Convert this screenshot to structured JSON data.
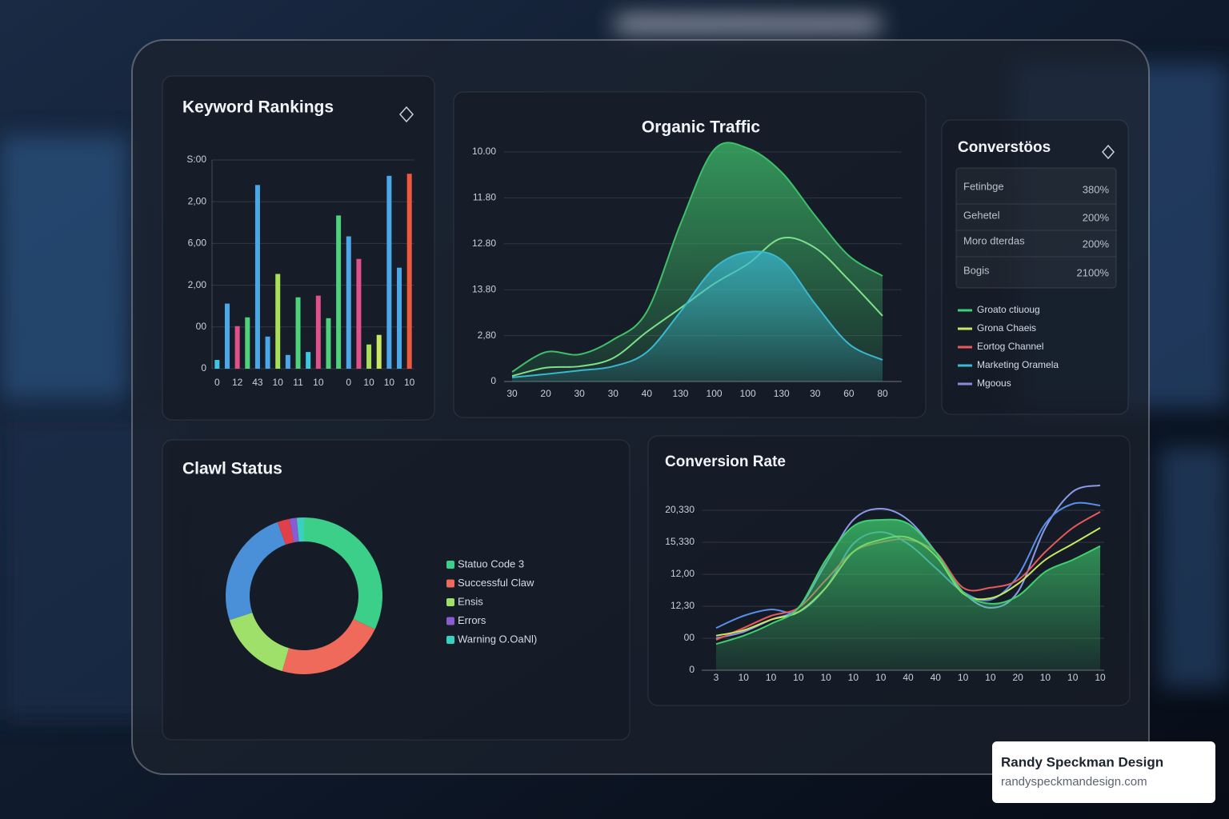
{
  "chart_data": [
    {
      "type": "bar",
      "title": "Keyword Rankings",
      "categories": [
        "0",
        null,
        "12",
        null,
        "43",
        null,
        "10",
        null,
        "11",
        null,
        "10",
        null,
        null,
        "0",
        null,
        "10",
        null,
        "10",
        null,
        "10"
      ],
      "values": [
        21,
        156,
        102,
        123,
        440,
        77,
        227,
        33,
        171,
        40,
        175,
        121,
        367,
        317,
        263,
        58,
        81,
        462,
        242,
        467
      ],
      "colors": [
        "#3fc6e0",
        "#4aa8e8",
        "#e0508a",
        "#4fd07a",
        "#4aa8e8",
        "#4aa8e8",
        "#a8e05a",
        "#4aa8e8",
        "#4fd07a",
        "#3fc6e0",
        "#e0508a",
        "#4fd07a",
        "#4fd07a",
        "#4aa8e8",
        "#e0508a",
        "#a8e05a",
        "#c8e860",
        "#4aa8e8",
        "#4aa8e8",
        "#f0583c"
      ],
      "ylim": [
        0,
        500
      ],
      "yticks": [
        0,
        {
          "value": 100,
          "label": "00"
        },
        {
          "value": 200,
          "label": "2,00"
        },
        {
          "value": 300,
          "label": "6,00"
        },
        {
          "value": 400,
          "label": "2,00"
        },
        {
          "value": 500,
          "label": "S:00"
        }
      ],
      "grid": true
    },
    {
      "type": "area",
      "title": "Organic Traffic",
      "categories": [
        "30",
        "20",
        "30",
        "30",
        "40",
        "130",
        "100",
        "100",
        "130",
        "30",
        "60",
        "80"
      ],
      "series": [
        {
          "color": "#3fbf6a",
          "fill": true,
          "values": [
            21,
            64,
            59,
            91,
            152,
            343,
            505,
            508,
            456,
            361,
            274,
            230
          ]
        },
        {
          "color": "#7de08a",
          "fill": false,
          "values": [
            12,
            30,
            33,
            51,
            108,
            160,
            213,
            256,
            312,
            291,
            221,
            143
          ]
        },
        {
          "color": "#3ab8d0",
          "fill": true,
          "values": [
            9,
            16,
            24,
            33,
            64,
            152,
            247,
            282,
            265,
            169,
            82,
            47
          ]
        }
      ],
      "ylim": [
        0,
        520
      ],
      "yticks": [
        0,
        {
          "value": 100,
          "label": "2,80"
        },
        {
          "value": 200,
          "label": "13.80"
        },
        {
          "value": 300,
          "label": "12.80"
        },
        {
          "value": 400,
          "label": "11.80"
        },
        {
          "value": 500,
          "label": "10.00"
        }
      ],
      "grid": true
    },
    {
      "type": "pie",
      "title": "Clawl Status",
      "donut": true,
      "categories": [
        "Statuo Code 3",
        "Successful Claw",
        "Ensis",
        null,
        null,
        "Errors",
        "Warning O.OaNl)"
      ],
      "values": [
        32,
        22.5,
        15.5,
        24.5,
        2.5,
        1.5,
        1.5
      ],
      "colors": [
        "#3ccf8a",
        "#ef6a5a",
        "#9ee06a",
        "#4a90d8",
        "#e0404a",
        "#8a5cd0",
        "#3ad0c0"
      ]
    },
    {
      "type": "line",
      "title": "Conversion Rate",
      "categories": [
        "3",
        "10",
        "10",
        "10",
        "10",
        "10",
        "10",
        "40",
        "40",
        "10",
        "10",
        "20",
        "10",
        "10",
        "10"
      ],
      "series": [
        {
          "color": "#8a9ae8",
          "fill": false,
          "values": [
            100,
            120,
            158,
            195,
            333,
            470,
            505,
            470,
            370,
            245,
            195,
            245,
            445,
            558,
            578
          ]
        },
        {
          "color": "#5a8ee8",
          "fill": false,
          "values": [
            132,
            170,
            190,
            182,
            258,
            395,
            432,
            395,
            320,
            245,
            220,
            295,
            458,
            520,
            515
          ]
        },
        {
          "color": "#e85a5a",
          "fill": false,
          "values": [
            95,
            132,
            170,
            195,
            282,
            370,
            400,
            408,
            370,
            258,
            258,
            282,
            370,
            445,
            495
          ]
        },
        {
          "color": "#c8e860",
          "fill": false,
          "values": [
            108,
            125,
            158,
            182,
            258,
            370,
            408,
            415,
            358,
            240,
            225,
            270,
            345,
            395,
            445
          ]
        },
        {
          "color": "#40d070",
          "fill": true,
          "values": [
            82,
            108,
            145,
            195,
            345,
            450,
            470,
            458,
            370,
            245,
            208,
            232,
            308,
            345,
            388
          ]
        }
      ],
      "ylim": [
        0,
        600
      ],
      "yticks": [
        0,
        {
          "value": 100,
          "label": "00"
        },
        {
          "value": 200,
          "label": "12,30"
        },
        {
          "value": 300,
          "label": "12,00"
        },
        {
          "value": 400,
          "label": "15,330"
        },
        {
          "value": 500,
          "label": "20,330"
        }
      ],
      "grid": true
    }
  ],
  "conversions_panel": {
    "title": "Converstöos",
    "rows": [
      [
        "Fetinbge",
        "380%"
      ],
      [
        "Gehetel",
        "200%"
      ],
      [
        "Moro dterdas",
        "200%"
      ],
      [
        "Bogis",
        "2100%"
      ]
    ],
    "legend": [
      {
        "label": "Groato ctiuoug",
        "color": "#3fcf7a"
      },
      {
        "label": "Grona Chaeis",
        "color": "#c8e860"
      },
      {
        "label": "Eortog Channel",
        "color": "#e85a5a"
      },
      {
        "label": "Marketing Oramela",
        "color": "#3ab8d8"
      },
      {
        "label": "Mgoous",
        "color": "#8a8ad8"
      }
    ]
  },
  "watermark": {
    "name": "Randy Speckman Design",
    "url": "randyspeckmandesign.com"
  }
}
